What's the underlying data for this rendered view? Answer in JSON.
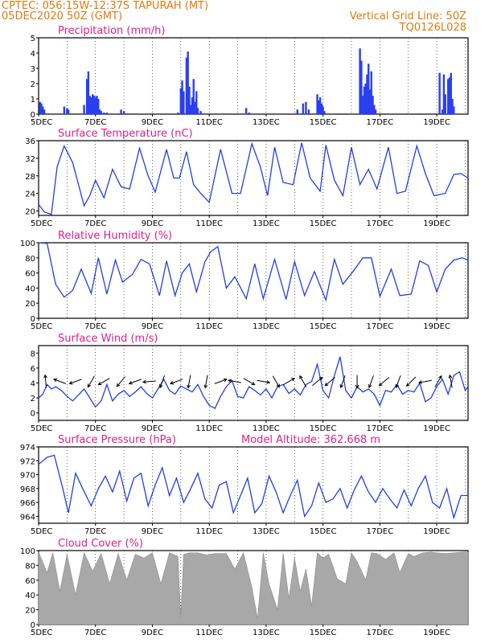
{
  "header": {
    "line1": "CPTEC:  056:15W-12:37S  TAPURAH (MT)",
    "line2": "05DEC2020 50Z (GMT)",
    "right1": "Vertical Grid Line: 50Z",
    "right2": "TQ0126L028"
  },
  "x_ticks": [
    "5DEC",
    "7DEC",
    "9DEC",
    "11DEC",
    "13DEC",
    "15DEC",
    "17DEC",
    "19DEC"
  ],
  "x_tick_days": [
    0,
    2,
    4,
    6,
    8,
    10,
    12,
    14
  ],
  "x_range_days": [
    0,
    15.1
  ],
  "colors": {
    "line": "#2040e0",
    "bar": "#2a3ff0",
    "cloud": "#a8a8a8",
    "title": "#e0208a",
    "header": "#e07a10"
  },
  "chart_data": [
    {
      "type": "bar",
      "title": "Precipitation (mm/h)",
      "ylim": [
        0,
        5
      ],
      "yticks": [
        0,
        1,
        2,
        3,
        4,
        5
      ],
      "x": [
        0.05,
        0.1,
        0.15,
        0.2,
        0.9,
        1.0,
        1.05,
        1.6,
        1.7,
        1.75,
        1.8,
        1.85,
        1.9,
        1.95,
        2.0,
        2.05,
        2.1,
        2.15,
        2.2,
        2.3,
        2.4,
        2.9,
        3.0,
        4.9,
        5.0,
        5.05,
        5.1,
        5.2,
        5.25,
        5.3,
        5.35,
        5.4,
        5.45,
        5.5,
        5.55,
        5.6,
        5.7,
        7.3,
        7.4,
        9.1,
        9.3,
        9.4,
        9.5,
        9.8,
        9.85,
        9.9,
        9.95,
        10.0,
        10.05,
        11.3,
        11.35,
        11.4,
        11.45,
        11.5,
        11.55,
        11.6,
        11.65,
        11.7,
        11.75,
        11.8,
        11.85,
        14.1,
        14.2,
        14.25,
        14.3,
        14.4,
        14.45,
        14.5,
        14.55,
        14.6
      ],
      "values": [
        0.8,
        0.7,
        0.5,
        0.3,
        0.5,
        0.4,
        0.3,
        0.6,
        2.3,
        2.8,
        1.2,
        1.1,
        1.3,
        1.2,
        1.1,
        1.2,
        1.0,
        0.3,
        0.2,
        0.1,
        0.1,
        0.3,
        0.2,
        0.1,
        1.7,
        2.2,
        1.5,
        3.7,
        4.1,
        1.8,
        0.6,
        1.1,
        2.3,
        0.8,
        1.5,
        0.4,
        0.2,
        0.4,
        0.1,
        0.3,
        0.7,
        0.8,
        0.3,
        1.3,
        0.9,
        1.1,
        0.7,
        0.5,
        0.2,
        4.3,
        3.5,
        1.2,
        1.8,
        2.0,
        2.6,
        3.3,
        1.6,
        2.8,
        1.2,
        0.6,
        0.3,
        2.7,
        0.3,
        2.6,
        1.3,
        2.3,
        2.4,
        2.7,
        1.0,
        0.5
      ]
    },
    {
      "type": "line",
      "title": "Surface Temperature (nC)",
      "ylim": [
        19,
        36
      ],
      "yticks": [
        20,
        24,
        28,
        32,
        36
      ],
      "x": [
        0,
        0.2,
        0.45,
        0.65,
        0.9,
        1.2,
        1.6,
        1.8,
        2.0,
        2.3,
        2.6,
        2.9,
        3.2,
        3.55,
        3.85,
        4.1,
        4.5,
        4.75,
        4.95,
        5.2,
        5.45,
        5.7,
        6.0,
        6.4,
        6.8,
        7.1,
        7.5,
        7.8,
        8.05,
        8.3,
        8.6,
        8.95,
        9.25,
        9.55,
        9.9,
        10.1,
        10.4,
        10.7,
        11.0,
        11.3,
        11.6,
        11.9,
        12.3,
        12.6,
        12.9,
        13.3,
        13.6,
        13.9,
        14.3,
        14.6,
        14.85,
        15.1
      ],
      "values": [
        21.5,
        19.8,
        19.2,
        30.0,
        34.8,
        31.0,
        21.2,
        23.5,
        27.0,
        23.0,
        29.5,
        25.5,
        25.0,
        34.3,
        28.0,
        24.3,
        34.0,
        27.5,
        27.5,
        33.5,
        26.0,
        24.0,
        22.0,
        34.0,
        24.0,
        24.0,
        35.3,
        30.0,
        23.5,
        34.5,
        26.5,
        26.0,
        35.5,
        27.5,
        24.5,
        35.0,
        27.0,
        23.5,
        34.5,
        26.0,
        29.5,
        25.0,
        34.5,
        24.0,
        24.5,
        34.8,
        28.5,
        23.5,
        24.0,
        28.3,
        28.5,
        27.5
      ]
    },
    {
      "type": "line",
      "title": "Relative Humidity (%)",
      "ylim": [
        0,
        100
      ],
      "yticks": [
        0,
        20,
        40,
        60,
        80,
        100
      ],
      "x": [
        0,
        0.3,
        0.6,
        0.9,
        1.2,
        1.5,
        1.85,
        2.1,
        2.4,
        2.7,
        2.95,
        3.3,
        3.6,
        3.9,
        4.25,
        4.5,
        4.8,
        5.05,
        5.3,
        5.55,
        5.85,
        6.05,
        6.3,
        6.6,
        6.9,
        7.3,
        7.6,
        7.9,
        8.3,
        8.7,
        9.0,
        9.35,
        9.7,
        10.1,
        10.4,
        10.7,
        11.1,
        11.4,
        11.7,
        12.0,
        12.4,
        12.7,
        13.1,
        13.4,
        13.7,
        14.0,
        14.3,
        14.6,
        14.9,
        15.1
      ],
      "values": [
        100,
        99,
        45,
        28,
        37,
        65,
        33,
        80,
        32,
        77,
        48,
        58,
        78,
        72,
        30,
        76,
        30,
        60,
        72,
        35,
        75,
        88,
        95,
        40,
        55,
        26,
        72,
        26,
        78,
        25,
        75,
        30,
        62,
        24,
        78,
        45,
        64,
        80,
        80,
        29,
        65,
        30,
        32,
        76,
        70,
        35,
        65,
        77,
        80,
        77
      ]
    },
    {
      "type": "line",
      "title": "Surface Wind (m/s)",
      "ylim": [
        -1,
        9
      ],
      "yticks": [
        0,
        2,
        4,
        6,
        8
      ],
      "x": [
        0,
        0.15,
        0.3,
        0.45,
        0.6,
        0.8,
        1.0,
        1.2,
        1.4,
        1.6,
        1.8,
        2.0,
        2.2,
        2.4,
        2.6,
        2.8,
        3.0,
        3.2,
        3.4,
        3.6,
        3.8,
        4.0,
        4.2,
        4.4,
        4.6,
        4.8,
        5.0,
        5.2,
        5.4,
        5.6,
        5.8,
        6.0,
        6.2,
        6.4,
        6.6,
        6.8,
        7.0,
        7.2,
        7.4,
        7.6,
        7.8,
        8.0,
        8.2,
        8.4,
        8.6,
        8.8,
        9.0,
        9.2,
        9.4,
        9.6,
        9.8,
        10.0,
        10.2,
        10.4,
        10.6,
        10.8,
        11.0,
        11.2,
        11.4,
        11.6,
        11.8,
        12.0,
        12.2,
        12.4,
        12.6,
        12.8,
        13.0,
        13.2,
        13.4,
        13.6,
        13.8,
        14.0,
        14.2,
        14.4,
        14.6,
        14.8,
        15.0,
        15.1
      ],
      "values": [
        2.0,
        2.5,
        3.8,
        3.2,
        3.5,
        3.0,
        2.2,
        1.6,
        2.4,
        3.2,
        2.0,
        0.8,
        1.6,
        3.8,
        1.6,
        2.5,
        3.0,
        2.2,
        2.8,
        3.5,
        2.6,
        2.0,
        3.2,
        4.5,
        3.0,
        2.5,
        3.6,
        3.2,
        2.8,
        3.8,
        2.2,
        1.0,
        0.6,
        2.2,
        3.5,
        4.3,
        2.2,
        2.0,
        3.5,
        3.0,
        2.4,
        3.2,
        2.0,
        3.5,
        3.8,
        2.6,
        3.2,
        2.4,
        3.8,
        4.2,
        6.5,
        3.0,
        2.0,
        5.0,
        7.5,
        3.0,
        2.0,
        3.5,
        2.8,
        3.2,
        2.5,
        1.0,
        3.0,
        2.8,
        3.8,
        2.5,
        3.0,
        2.8,
        4.0,
        1.5,
        2.0,
        3.5,
        4.5,
        2.5,
        5.0,
        5.5,
        3.0,
        3.5
      ],
      "arrow_x": [
        0.25,
        0.75,
        1.3,
        1.85,
        2.3,
        2.9,
        3.4,
        3.9,
        4.35,
        4.85,
        5.3,
        5.9,
        6.4,
        6.9,
        7.4,
        7.9,
        8.35,
        8.8,
        9.3,
        9.8,
        10.25,
        10.7,
        11.2,
        11.7,
        12.15,
        12.65,
        13.1,
        13.6,
        14.05,
        14.5
      ],
      "arrow_angle_deg": [
        95,
        160,
        200,
        240,
        210,
        230,
        200,
        185,
        250,
        200,
        260,
        260,
        20,
        170,
        330,
        350,
        300,
        30,
        120,
        40,
        220,
        250,
        270,
        250,
        220,
        250,
        225,
        190,
        60,
        100
      ]
    },
    {
      "type": "line",
      "title": "Surface Pressure (hPa)",
      "annotation": "Model Altitude: 362.668 m",
      "ylim": [
        963,
        974
      ],
      "yticks": [
        964,
        966,
        968,
        970,
        972,
        974
      ],
      "x": [
        0,
        0.3,
        0.55,
        0.85,
        1.05,
        1.3,
        1.55,
        1.85,
        2.1,
        2.35,
        2.6,
        2.85,
        3.1,
        3.35,
        3.6,
        3.85,
        4.1,
        4.35,
        4.6,
        4.85,
        5.1,
        5.35,
        5.6,
        5.85,
        6.1,
        6.35,
        6.6,
        6.85,
        7.1,
        7.35,
        7.6,
        7.85,
        8.1,
        8.35,
        8.6,
        8.85,
        9.1,
        9.35,
        9.6,
        9.85,
        10.1,
        10.35,
        10.6,
        10.85,
        11.1,
        11.35,
        11.6,
        11.85,
        12.1,
        12.35,
        12.6,
        12.85,
        13.1,
        13.35,
        13.6,
        13.85,
        14.1,
        14.35,
        14.6,
        14.85,
        15.1
      ],
      "values": [
        971.5,
        972.5,
        972.8,
        968.0,
        964.5,
        970.2,
        968.0,
        965.5,
        968.0,
        969.8,
        967.5,
        970.5,
        966.2,
        969.5,
        970.2,
        965.5,
        968.5,
        971.0,
        967.0,
        969.5,
        966.0,
        968.0,
        970.2,
        966.5,
        965.2,
        968.5,
        969.0,
        964.5,
        967.0,
        969.5,
        964.5,
        965.8,
        969.8,
        967.5,
        964.5,
        967.0,
        969.2,
        964.0,
        965.5,
        968.8,
        966.0,
        966.5,
        968.0,
        965.2,
        967.8,
        969.8,
        967.5,
        966.0,
        968.0,
        966.5,
        965.2,
        967.8,
        965.5,
        968.0,
        969.8,
        966.0,
        965.2,
        968.0,
        963.8,
        967.0,
        967.0
      ]
    },
    {
      "type": "area",
      "title": "Cloud Cover (%)",
      "ylim": [
        0,
        100
      ],
      "yticks": [
        0,
        20,
        40,
        60,
        80,
        100
      ],
      "x": [
        0,
        0.3,
        0.5,
        0.75,
        1.0,
        1.3,
        1.6,
        1.9,
        2.2,
        2.5,
        2.8,
        3.1,
        3.4,
        3.7,
        4.0,
        4.3,
        4.6,
        4.9,
        5.0,
        5.1,
        5.3,
        5.6,
        5.9,
        6.2,
        6.6,
        6.9,
        7.2,
        7.5,
        7.7,
        7.9,
        8.1,
        8.4,
        8.6,
        8.8,
        9.0,
        9.2,
        9.4,
        9.6,
        9.8,
        10.0,
        10.2,
        10.5,
        10.8,
        11.0,
        11.2,
        11.5,
        11.7,
        11.9,
        12.2,
        12.5,
        12.7,
        13.0,
        13.2,
        13.5,
        13.8,
        14.0,
        14.3,
        14.6,
        14.9,
        15.1
      ],
      "values": [
        98,
        70,
        97,
        45,
        95,
        40,
        97,
        72,
        96,
        55,
        96,
        60,
        95,
        90,
        97,
        55,
        97,
        92,
        10,
        95,
        97,
        97,
        94,
        96,
        96,
        75,
        97,
        50,
        8,
        97,
        55,
        20,
        96,
        35,
        90,
        45,
        75,
        25,
        97,
        90,
        95,
        62,
        55,
        97,
        85,
        60,
        97,
        96,
        88,
        97,
        70,
        96,
        92,
        97,
        98,
        97,
        96,
        97,
        98,
        98
      ]
    }
  ]
}
